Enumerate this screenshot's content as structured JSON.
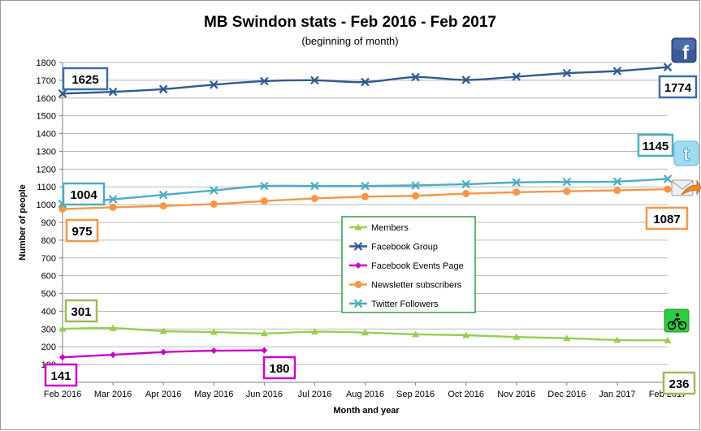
{
  "chart_data": {
    "type": "line",
    "title": "MB Swindon stats - Feb 2016 - Feb 2017",
    "subtitle": "(beginning of month)",
    "xlabel": "Month and year",
    "ylabel": "Number of people",
    "ylim": [
      0,
      1800
    ],
    "yticks": [
      0,
      100,
      200,
      300,
      400,
      500,
      600,
      700,
      800,
      900,
      1000,
      1100,
      1200,
      1300,
      1400,
      1500,
      1600,
      1700,
      1800
    ],
    "grid": true,
    "legend_position": "center-right",
    "categories": [
      "Feb 2016",
      "Mar 2016",
      "Apr 2016",
      "May 2016",
      "Jun 2016",
      "Jul 2016",
      "Aug 2016",
      "Sep 2016",
      "Oct 2016",
      "Nov 2016",
      "Dec 2016",
      "Jan 2017",
      "Feb 2017"
    ],
    "series": [
      {
        "name": "Members",
        "color": "#92d050",
        "marker": "triangle",
        "values": [
          301,
          305,
          288,
          283,
          275,
          285,
          280,
          270,
          265,
          255,
          248,
          238,
          236
        ]
      },
      {
        "name": "Facebook Group",
        "color": "#2f5a8f",
        "marker": "x",
        "values": [
          1625,
          1635,
          1650,
          1675,
          1695,
          1700,
          1690,
          1718,
          1702,
          1720,
          1740,
          1752,
          1774
        ]
      },
      {
        "name": "Facebook Events Page",
        "color": "#cc00cc",
        "marker": "diamond",
        "values": [
          141,
          155,
          170,
          178,
          180,
          null,
          null,
          null,
          null,
          null,
          null,
          null,
          null
        ]
      },
      {
        "name": "Newsletter subscribers",
        "color": "#f79646",
        "marker": "circle",
        "values": [
          975,
          985,
          993,
          1003,
          1020,
          1035,
          1045,
          1050,
          1062,
          1070,
          1075,
          1080,
          1087
        ]
      },
      {
        "name": "Twitter Followers",
        "color": "#4bacc6",
        "marker": "x",
        "values": [
          1004,
          1030,
          1055,
          1080,
          1105,
          1105,
          1105,
          1108,
          1115,
          1125,
          1128,
          1130,
          1145
        ]
      }
    ],
    "callouts": [
      {
        "text": "1625",
        "color": "#3e6ea8"
      },
      {
        "text": "1774",
        "color": "#3e6ea8"
      },
      {
        "text": "1145",
        "color": "#4bacc6"
      },
      {
        "text": "1004",
        "color": "#4bacc6"
      },
      {
        "text": "975",
        "color": "#f79646"
      },
      {
        "text": "1087",
        "color": "#f79646"
      },
      {
        "text": "301",
        "color": "#9bbb59"
      },
      {
        "text": "236",
        "color": "#9bbb59"
      },
      {
        "text": "141",
        "color": "#cc00cc"
      },
      {
        "text": "180",
        "color": "#cc00cc"
      }
    ],
    "icons": [
      "facebook-icon",
      "twitter-icon",
      "email-icon",
      "cycling-icon"
    ]
  }
}
